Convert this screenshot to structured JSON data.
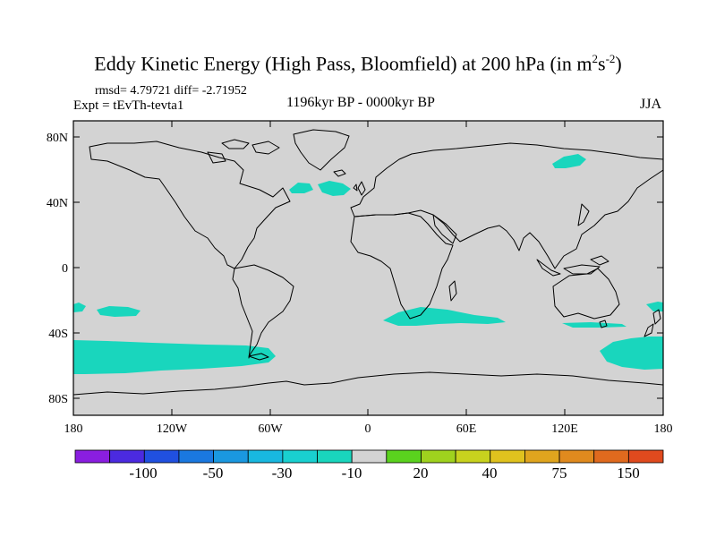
{
  "title": {
    "main": "Eddy Kinetic Energy (High Pass, Bloomfield) at 200 hPa (in m",
    "exp1": "2",
    "mid": "s",
    "exp2": "-2",
    "end": ")"
  },
  "stats": "rmsd= 4.79721 diff= -2.71952",
  "experiment": "Expt = tEvTh-tevta1",
  "period": "1196kyr BP - 0000kyr BP",
  "season": "JJA",
  "colors": {
    "land_ocean": "#d3d3d3",
    "anomaly_fill": "#19d6bd",
    "coastline": "#000000"
  },
  "axes": {
    "lat_ticks": [
      "80N",
      "40N",
      "0",
      "40S",
      "80S"
    ],
    "lon_ticks": [
      "180",
      "120W",
      "60W",
      "0",
      "60E",
      "120E",
      "180"
    ]
  },
  "anomaly_regions": [
    "North Atlantic (~50N, 40W–20W)",
    "NW Siberia (~65N, 120E)",
    "South Pacific (30S–40S, 180–160W)",
    "South Pacific (30S, 150W–120W)",
    "Southern Ocean (45S–60S, 180–60W)",
    "South Atlantic / Indian Ocean (30S–40S, 10E–90E)",
    "South of Australia (40S, 130E–150E)",
    "Tasman Sea / SW Pacific (45S–60S, 150E–180)",
    "East of Australia (30S, 175E–180)"
  ],
  "colorbar": {
    "colors": [
      "#8a1ee0",
      "#4b2ae0",
      "#2050e0",
      "#1a78e0",
      "#1a98e0",
      "#18b8e0",
      "#19d0d0",
      "#19d6bd",
      "#d3d3d3",
      "#5ad21e",
      "#9fd21e",
      "#c8d21e",
      "#e0c21e",
      "#e0a51e",
      "#e08a1e",
      "#e06a1e",
      "#e04a1e"
    ],
    "labels": [
      "-100",
      "-50",
      "-30",
      "-10",
      "20",
      "40",
      "75",
      "150"
    ]
  }
}
